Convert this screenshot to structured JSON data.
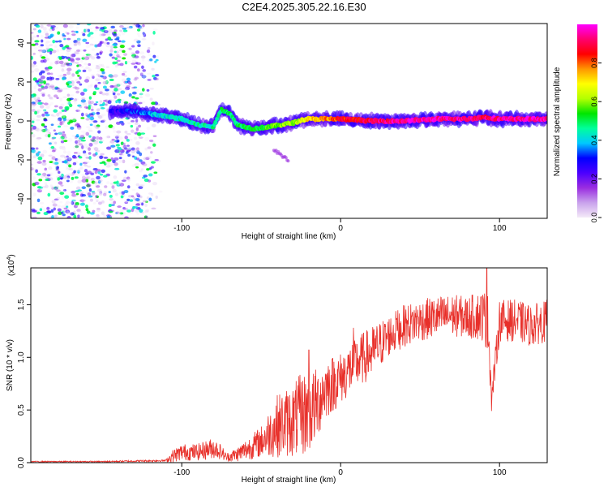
{
  "title": "C2E4.2025.305.22.16.E30",
  "chart_data": [
    {
      "type": "heatmap",
      "name": "spectrogram",
      "xlabel": "Height of straight line (km)",
      "ylabel": "Frequency (Hz)",
      "xlim": [
        -195,
        130
      ],
      "ylim": [
        -50,
        50
      ],
      "xticks": [
        -100,
        0,
        100
      ],
      "xtick_labels": [
        "-100",
        "0",
        "100"
      ],
      "yticks": [
        -40,
        -20,
        0,
        20,
        40
      ],
      "ytick_labels": [
        "-40",
        "-20",
        "0",
        "20",
        "40"
      ],
      "grid": false,
      "noise_region_x": [
        -195,
        -113
      ],
      "signal_track": {
        "x": [
          -145,
          -130,
          -115,
          -100,
          -90,
          -80,
          -75,
          -70,
          -65,
          -55,
          -45,
          -38,
          -30,
          -22,
          -15,
          -5,
          0,
          20,
          40,
          60,
          80,
          90,
          100,
          115,
          130
        ],
        "y": [
          5,
          5,
          3,
          1,
          -2,
          -3,
          6,
          4,
          -2,
          -4,
          -3,
          -2,
          -1,
          1,
          1,
          1,
          1,
          0,
          0,
          1,
          1,
          2,
          1,
          1,
          1
        ],
        "amplitude": [
          0.25,
          0.3,
          0.4,
          0.45,
          0.45,
          0.45,
          0.5,
          0.5,
          0.5,
          0.5,
          0.55,
          0.6,
          0.6,
          0.7,
          0.75,
          0.8,
          0.85,
          0.9,
          0.95,
          0.95,
          0.95,
          0.9,
          0.95,
          0.95,
          0.95
        ]
      },
      "stray_feature": {
        "x": [
          -42,
          -33
        ],
        "y": [
          -15,
          -20
        ]
      }
    },
    {
      "type": "colorbar",
      "label": "Normalized spectral amplitude",
      "range": [
        0,
        1
      ],
      "ticks": [
        0.0,
        0.2,
        0.4,
        0.6,
        0.8
      ],
      "tick_labels": [
        "0.0",
        "0.2",
        "0.4",
        "0.6",
        "0.8"
      ],
      "colors": [
        "#f4eaf8",
        "#c9a2ec",
        "#9a2de0",
        "#4b00ff",
        "#0000ff",
        "#00c8ff",
        "#00ff9c",
        "#00e600",
        "#b4ff00",
        "#ffff00",
        "#ff9600",
        "#ff0000",
        "#ff006e",
        "#ff00ff"
      ]
    },
    {
      "type": "line",
      "name": "snr",
      "xlabel": "Height of straight line (km)",
      "ylabel": "SNR (10 * v/v)",
      "scale_label": "(x10",
      "scale_exponent": "4",
      "xlim": [
        -195,
        130
      ],
      "ylim": [
        0,
        1.85
      ],
      "xticks": [
        -100,
        0,
        100
      ],
      "xtick_labels": [
        "-100",
        "0",
        "100"
      ],
      "yticks": [
        0.0,
        0.5,
        1.0,
        1.5
      ],
      "ytick_labels": [
        "0.0",
        "0.5",
        "1.0",
        "1.5"
      ],
      "color": "#e8302a",
      "envelope": {
        "x": [
          -195,
          -150,
          -110,
          -106,
          -100,
          -90,
          -80,
          -75,
          -72,
          -65,
          -60,
          -50,
          -40,
          -30,
          -25,
          -20,
          -15,
          -10,
          0,
          10,
          20,
          30,
          40,
          50,
          60,
          70,
          80,
          90,
          93,
          95,
          100,
          110,
          120,
          130
        ],
        "mean": [
          0.01,
          0.01,
          0.02,
          0.06,
          0.1,
          0.1,
          0.14,
          0.1,
          0.05,
          0.08,
          0.12,
          0.2,
          0.35,
          0.4,
          0.45,
          0.48,
          0.55,
          0.7,
          0.8,
          0.95,
          1.05,
          1.2,
          1.3,
          1.35,
          1.38,
          1.4,
          1.38,
          1.4,
          1.3,
          0.6,
          1.35,
          1.35,
          1.3,
          1.35
        ],
        "amp": [
          0.005,
          0.006,
          0.01,
          0.06,
          0.08,
          0.08,
          0.1,
          0.07,
          0.04,
          0.07,
          0.1,
          0.15,
          0.3,
          0.35,
          0.4,
          0.4,
          0.35,
          0.3,
          0.25,
          0.25,
          0.25,
          0.2,
          0.2,
          0.2,
          0.2,
          0.2,
          0.2,
          0.25,
          0.3,
          0.1,
          0.2,
          0.2,
          0.2,
          0.2
        ]
      },
      "peaks": [
        {
          "x": -20,
          "y": 1.07
        },
        {
          "x": 8,
          "y": 1.28
        },
        {
          "x": 35,
          "y": 1.36
        },
        {
          "x": 48,
          "y": 1.39
        },
        {
          "x": 92,
          "y": 1.85
        },
        {
          "x": 95,
          "y": 0.49
        }
      ]
    }
  ]
}
